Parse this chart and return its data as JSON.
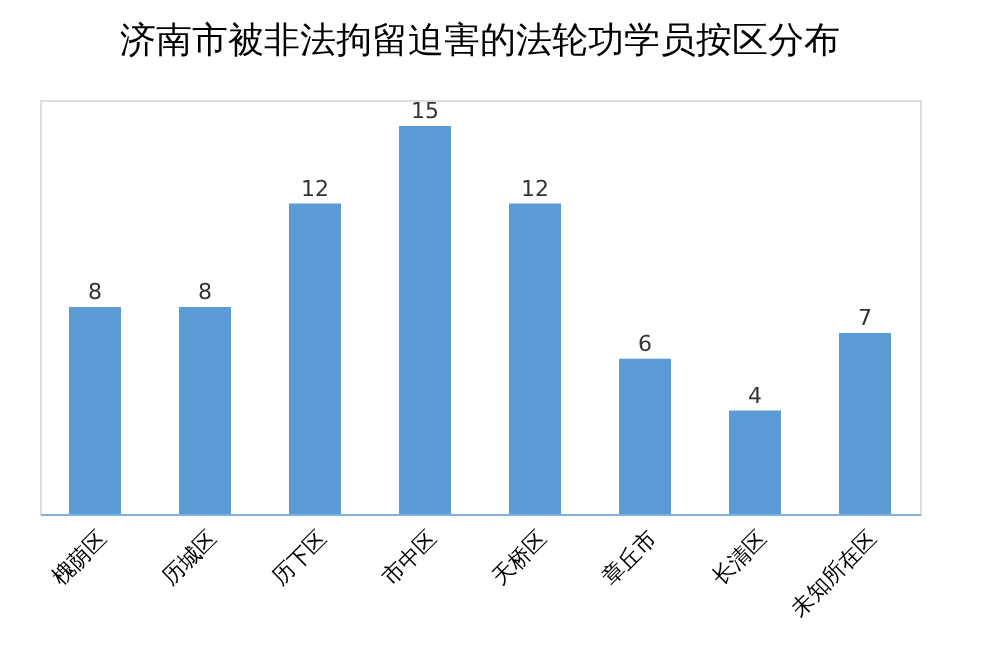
{
  "chart_data": {
    "type": "bar",
    "title": "济南市被非法拘留迫害的法轮功学员按区分布",
    "categories": [
      "槐荫区",
      "历城区",
      "历下区",
      "市中区",
      "天桥区",
      "章丘市",
      "长清区",
      "未知所在区"
    ],
    "values": [
      8,
      8,
      12,
      15,
      12,
      6,
      4,
      7
    ],
    "color": "#5b9bd5",
    "data_labels": true,
    "grid": false
  }
}
